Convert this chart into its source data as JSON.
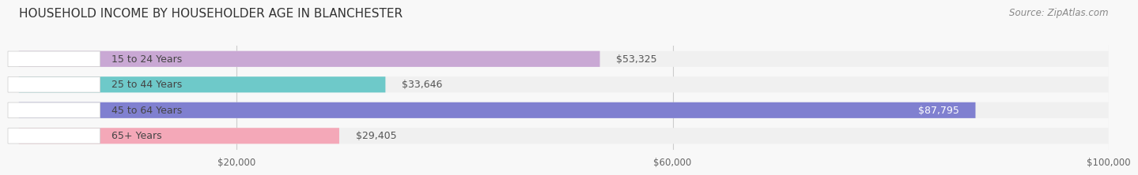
{
  "title": "HOUSEHOLD INCOME BY HOUSEHOLDER AGE IN BLANCHESTER",
  "source": "Source: ZipAtlas.com",
  "categories": [
    "15 to 24 Years",
    "25 to 44 Years",
    "45 to 64 Years",
    "65+ Years"
  ],
  "values": [
    53325,
    33646,
    87795,
    29405
  ],
  "bar_colors": [
    "#c9a8d4",
    "#6ec9c9",
    "#8080d0",
    "#f4a8b8"
  ],
  "bar_bg_color": "#f0f0f0",
  "label_colors": [
    "#555555",
    "#555555",
    "#ffffff",
    "#555555"
  ],
  "xlim": [
    0,
    100000
  ],
  "xticks": [
    20000,
    60000,
    100000
  ],
  "xtick_labels": [
    "$20,000",
    "$60,000",
    "$100,000"
  ],
  "background_color": "#f8f8f8",
  "title_fontsize": 11,
  "source_fontsize": 8.5,
  "label_fontsize": 9,
  "cat_fontsize": 9
}
